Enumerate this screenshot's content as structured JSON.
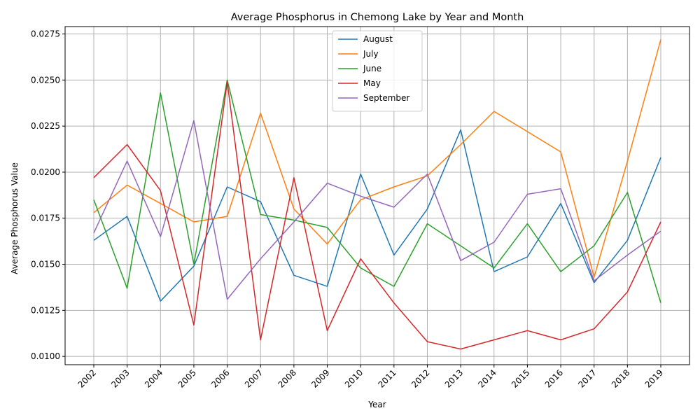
{
  "chart_data": {
    "type": "line",
    "title": "Average Phosphorus in Chemong Lake by Year and Month",
    "xlabel": "Year",
    "ylabel": "Average Phosphorus Value",
    "x": [
      "2002",
      "2003",
      "2004",
      "2005",
      "2006",
      "2007",
      "2008",
      "2009",
      "2010",
      "2011",
      "2012",
      "2013",
      "2014",
      "2015",
      "2016",
      "2017",
      "2018",
      "2019"
    ],
    "ylim": [
      0.00955,
      0.0279
    ],
    "yticks": [
      "0.0100",
      "0.0125",
      "0.0150",
      "0.0175",
      "0.0200",
      "0.0225",
      "0.0250",
      "0.0275"
    ],
    "grid": true,
    "legend_position": "top-center",
    "series": [
      {
        "name": "August",
        "color": "#1f77b4",
        "values": [
          0.0163,
          0.0176,
          0.013,
          0.0149,
          0.0192,
          0.0184,
          0.0144,
          0.0138,
          0.0199,
          0.0155,
          0.018,
          0.0223,
          0.0146,
          0.0154,
          0.0183,
          0.014,
          0.0163,
          0.0208
        ]
      },
      {
        "name": "July",
        "color": "#ff7f0e",
        "values": [
          0.0178,
          0.0193,
          0.0183,
          0.0173,
          0.0176,
          0.0232,
          0.018,
          0.0161,
          0.0185,
          0.0192,
          0.0198,
          0.0215,
          0.0233,
          0.0222,
          0.0211,
          0.0143,
          0.0206,
          0.0272
        ]
      },
      {
        "name": "June",
        "color": "#2ca02c",
        "values": [
          0.0185,
          0.0137,
          0.0243,
          0.015,
          0.025,
          0.0177,
          0.0174,
          0.017,
          0.0148,
          0.0138,
          0.0172,
          0.016,
          0.0148,
          0.0172,
          0.0146,
          0.016,
          0.0189,
          0.0129
        ]
      },
      {
        "name": "May",
        "color": "#d62728",
        "values": [
          0.0197,
          0.0215,
          0.019,
          0.0117,
          0.0249,
          0.0109,
          0.0197,
          0.0114,
          0.0153,
          0.0129,
          0.0108,
          0.0104,
          0.0109,
          0.0114,
          0.0109,
          0.0115,
          0.0135,
          0.0173
        ]
      },
      {
        "name": "September",
        "color": "#9467bd",
        "values": [
          0.0167,
          0.0206,
          0.0165,
          0.0228,
          0.0131,
          0.0153,
          0.0173,
          0.0194,
          0.0187,
          0.0181,
          0.0199,
          0.0152,
          0.0162,
          0.0188,
          0.0191,
          0.0141,
          0.0155,
          0.0168
        ]
      }
    ]
  }
}
